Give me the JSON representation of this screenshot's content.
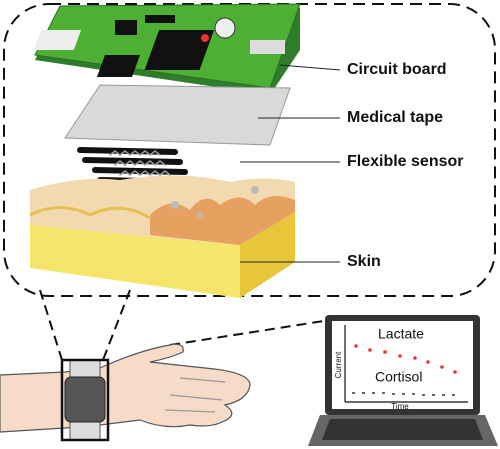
{
  "layers": {
    "circuit_board": "Circuit board",
    "medical_tape": "Medical tape",
    "flexible_sensor": "Flexible sensor",
    "skin": "Skin"
  },
  "screen": {
    "series_1": "Lactate",
    "series_2": "Cortisol",
    "y_axis": "Current",
    "x_axis": "Time"
  }
}
